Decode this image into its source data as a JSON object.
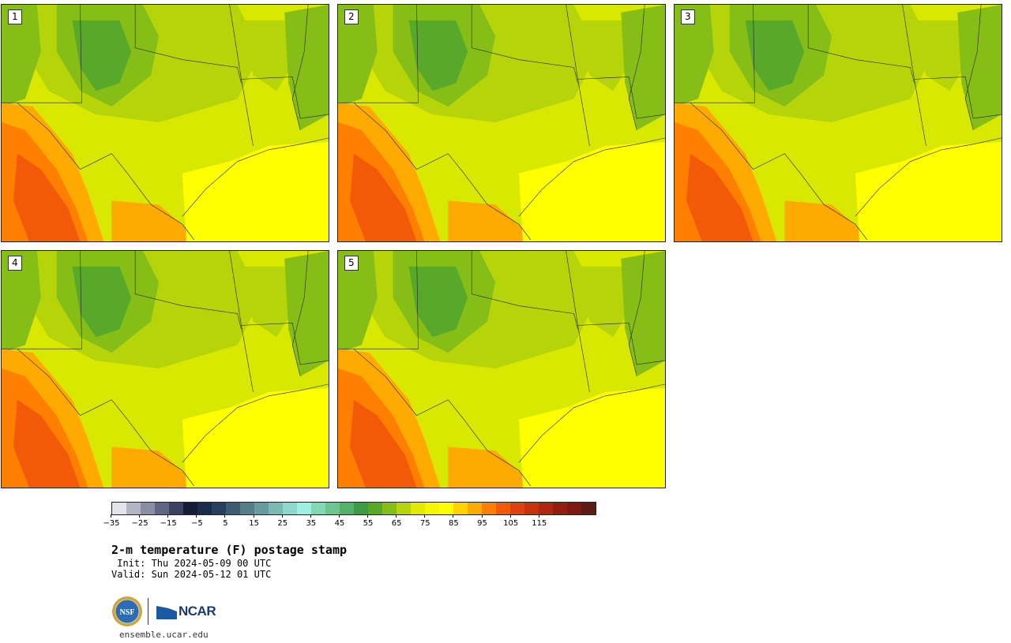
{
  "panels": [
    {
      "label": "1"
    },
    {
      "label": "2"
    },
    {
      "label": "3"
    },
    {
      "label": "4"
    },
    {
      "label": "5"
    }
  ],
  "colorbar": {
    "colors": [
      "#e3e4ea",
      "#b3b5c4",
      "#8a8ea3",
      "#5f6583",
      "#3b4262",
      "#151c36",
      "#1a2b4b",
      "#283f5e",
      "#3b5c73",
      "#567e89",
      "#689b9f",
      "#7ab9b4",
      "#8dd7cb",
      "#9ff0e0",
      "#85d7b3",
      "#6ec590",
      "#55b06c",
      "#3f9a44",
      "#58a92a",
      "#86bd17",
      "#b6d40a",
      "#e1ea00",
      "#f4f700",
      "#ffff00",
      "#ffd200",
      "#ffaa00",
      "#ff7f00",
      "#f25a08",
      "#e04010",
      "#c83010",
      "#b02610",
      "#961c10",
      "#7c1a12",
      "#5e1a14"
    ],
    "tick_labels": [
      "−35",
      "−25",
      "−15",
      "−5",
      "5",
      "15",
      "25",
      "35",
      "45",
      "55",
      "65",
      "75",
      "85",
      "95",
      "105",
      "115"
    ]
  },
  "title": "2-m temperature (F) postage stamp",
  "init_line": " Init: Thu 2024-05-09 00 UTC",
  "valid_line": "Valid: Sun 2024-05-12 01 UTC",
  "logos": {
    "nsf": "NSF",
    "ncar": "NCAR"
  },
  "website": "ensemble.ucar.edu"
}
